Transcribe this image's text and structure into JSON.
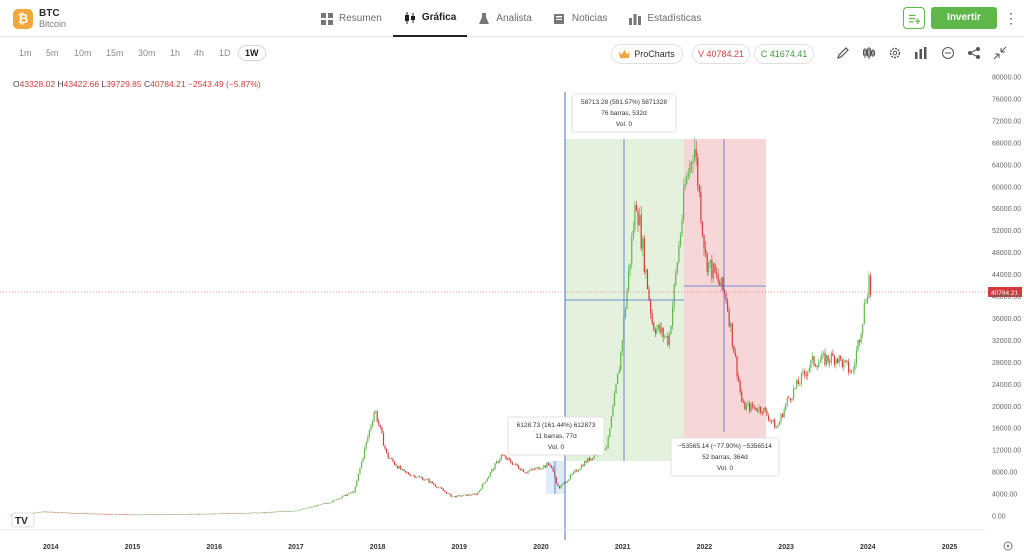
{
  "header": {
    "asset_symbol": "BTC",
    "asset_name": "Bitcoin",
    "logo_glyph": "₿",
    "nav": [
      {
        "label": "Resumen",
        "icon": "dashboard-icon"
      },
      {
        "label": "Gráfica",
        "icon": "candles-icon",
        "active": true
      },
      {
        "label": "Analista",
        "icon": "flask-icon"
      },
      {
        "label": "Noticias",
        "icon": "newspaper-icon"
      },
      {
        "label": "Estadísticas",
        "icon": "bar-chart-icon"
      }
    ],
    "invest_label": "Invertir",
    "accent": "#5fb74a"
  },
  "toolbar": {
    "timeframes": [
      "1m",
      "5m",
      "10m",
      "15m",
      "30m",
      "1h",
      "4h",
      "1D",
      "1W"
    ],
    "active_timeframe": "1W",
    "prochart_label": "ProCharts",
    "sell_label": "V 40784.21",
    "buy_label": "C 41674.41"
  },
  "ohlc": {
    "o": "43328.02",
    "h": "43422.66",
    "l": "39729.85",
    "c": "40784.21",
    "chg": "−2543.49 (−5.87%)"
  },
  "chart_data": {
    "type": "candlestick",
    "title": "",
    "x": [
      "2014",
      "2015",
      "2016",
      "2017",
      "2018",
      "2019",
      "2020",
      "2021",
      "2022",
      "2023",
      "2024",
      "2025"
    ],
    "y_ticks": [
      "80000.00",
      "76000.00",
      "72000.00",
      "68000.00",
      "64000.00",
      "60000.00",
      "56000.00",
      "52000.00",
      "48000.00",
      "44000.00",
      "40000.00",
      "36000.00",
      "32000.00",
      "28000.00",
      "24000.00",
      "20000.00",
      "16000.00",
      "12000.00",
      "8000.00",
      "4000.00",
      "0.00"
    ],
    "ylim": [
      0,
      80000
    ],
    "current_price_label": "40784.21",
    "price_series": [
      {
        "t": 2013.5,
        "p": 100
      },
      {
        "t": 2013.9,
        "p": 800
      },
      {
        "t": 2014.3,
        "p": 500
      },
      {
        "t": 2015.0,
        "p": 250
      },
      {
        "t": 2016.0,
        "p": 420
      },
      {
        "t": 2016.6,
        "p": 650
      },
      {
        "t": 2017.0,
        "p": 1000
      },
      {
        "t": 2017.4,
        "p": 2500
      },
      {
        "t": 2017.7,
        "p": 4500
      },
      {
        "t": 2017.95,
        "p": 19500
      },
      {
        "t": 2018.1,
        "p": 11000
      },
      {
        "t": 2018.3,
        "p": 8000
      },
      {
        "t": 2018.6,
        "p": 6500
      },
      {
        "t": 2018.9,
        "p": 3500
      },
      {
        "t": 2019.2,
        "p": 4000
      },
      {
        "t": 2019.5,
        "p": 11000
      },
      {
        "t": 2019.8,
        "p": 8000
      },
      {
        "t": 2020.1,
        "p": 9500
      },
      {
        "t": 2020.2,
        "p": 5000
      },
      {
        "t": 2020.5,
        "p": 9500
      },
      {
        "t": 2020.8,
        "p": 13000
      },
      {
        "t": 2020.95,
        "p": 28000
      },
      {
        "t": 2021.15,
        "p": 58000
      },
      {
        "t": 2021.35,
        "p": 35000
      },
      {
        "t": 2021.55,
        "p": 32000
      },
      {
        "t": 2021.75,
        "p": 60000
      },
      {
        "t": 2021.86,
        "p": 68000
      },
      {
        "t": 2022.0,
        "p": 47000
      },
      {
        "t": 2022.25,
        "p": 40000
      },
      {
        "t": 2022.45,
        "p": 20000
      },
      {
        "t": 2022.7,
        "p": 19500
      },
      {
        "t": 2022.87,
        "p": 16000
      },
      {
        "t": 2023.0,
        "p": 21000
      },
      {
        "t": 2023.3,
        "p": 28000
      },
      {
        "t": 2023.6,
        "p": 29000
      },
      {
        "t": 2023.8,
        "p": 26000
      },
      {
        "t": 2023.92,
        "p": 36000
      },
      {
        "t": 2024.0,
        "p": 43400
      },
      {
        "t": 2024.02,
        "p": 40784
      }
    ]
  },
  "measures": [
    {
      "id": "m-small",
      "line1": "6128.73 (161.44%) 612873",
      "line2": "11 barras, 77d",
      "line3": "Vol. 0"
    },
    {
      "id": "m-up",
      "line1": "58713.28 (591.57%) 5871328",
      "line2": "76 barras, 532d",
      "line3": "Vol. 0"
    },
    {
      "id": "m-down",
      "line1": "−53565.14 (−77.90%) −5356514",
      "line2": "52 barras, 364d",
      "line3": "Vol. 0"
    }
  ],
  "colors": {
    "up": "#5fb74a",
    "down": "#d23c3c",
    "up_zone": "#e3f1dd",
    "down_zone": "#f7d6d8",
    "measure_line": "#4b6fd6"
  }
}
